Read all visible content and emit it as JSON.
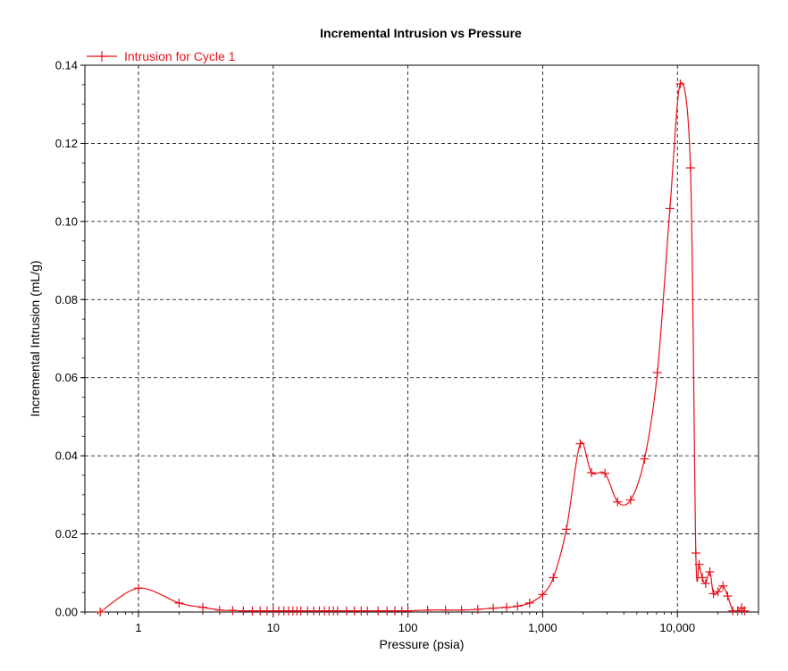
{
  "chart_data": {
    "type": "line",
    "title": "Incremental Intrusion vs Pressure",
    "xlabel": "Pressure (psia)",
    "ylabel": "Incremental Intrusion (mL/g)",
    "x_scale": "log",
    "xlim": [
      0.4,
      40000
    ],
    "ylim": [
      0,
      0.14
    ],
    "x_ticks": [
      1,
      10,
      100,
      1000,
      10000
    ],
    "x_tick_labels": [
      "1",
      "10",
      "100",
      "1,000",
      "10,000"
    ],
    "y_ticks": [
      0,
      0.02,
      0.04,
      0.06,
      0.08,
      0.1,
      0.12,
      0.14
    ],
    "y_tick_labels": [
      "0.00",
      "0.02",
      "0.04",
      "0.06",
      "0.08",
      "0.10",
      "0.12",
      "0.14"
    ],
    "grid": true,
    "legend_position": "top-left",
    "series": [
      {
        "name": "Intrusion for Cycle 1",
        "color": "#e8101a",
        "marker": "plus",
        "x": [
          0.52,
          1.0,
          2.0,
          3.0,
          4.0,
          5.0,
          6.0,
          7.0,
          8.0,
          9.0,
          10.0,
          11.0,
          12.0,
          13.0,
          14.0,
          15.0,
          16.0,
          18.0,
          20.0,
          22.0,
          24.0,
          26.0,
          28.0,
          30.0,
          35.0,
          40.0,
          45.0,
          50.0,
          60.0,
          70.0,
          80.0,
          90.0,
          100.0,
          140.0,
          190.0,
          250.0,
          330.0,
          430.0,
          540.0,
          650.0,
          800.0,
          1000.0,
          1200.0,
          1500.0,
          1900.0,
          2300.0,
          2900.0,
          3600.0,
          4500.0,
          5700.0,
          7100.0,
          8800.0,
          10500.0,
          12500.0,
          13700.0,
          14500.0,
          15300.0,
          16200.0,
          17400.0,
          18500.0,
          20000.0,
          21800.0,
          23600.0,
          25800.0,
          28000.0,
          30000.0,
          31500.0
        ],
        "y": [
          0.0,
          0.0061,
          0.0023,
          0.0012,
          0.0005,
          0.0004,
          0.0003,
          0.0003,
          0.0003,
          0.0003,
          0.0003,
          0.0003,
          0.0003,
          0.0003,
          0.0003,
          0.0003,
          0.0003,
          0.0003,
          0.0003,
          0.0003,
          0.0003,
          0.0003,
          0.0003,
          0.0003,
          0.0003,
          0.0003,
          0.0003,
          0.0003,
          0.0003,
          0.0003,
          0.0003,
          0.0003,
          0.0003,
          0.0005,
          0.0005,
          0.0005,
          0.0007,
          0.001,
          0.0012,
          0.0015,
          0.0023,
          0.0045,
          0.0088,
          0.0212,
          0.0431,
          0.0357,
          0.0355,
          0.0282,
          0.0287,
          0.0392,
          0.0613,
          0.1033,
          0.1352,
          0.1137,
          0.0151,
          0.0122,
          0.0088,
          0.0073,
          0.0103,
          0.0047,
          0.0052,
          0.0067,
          0.0041,
          0.0003,
          0.0003,
          0.0011,
          0.0003
        ]
      }
    ]
  }
}
